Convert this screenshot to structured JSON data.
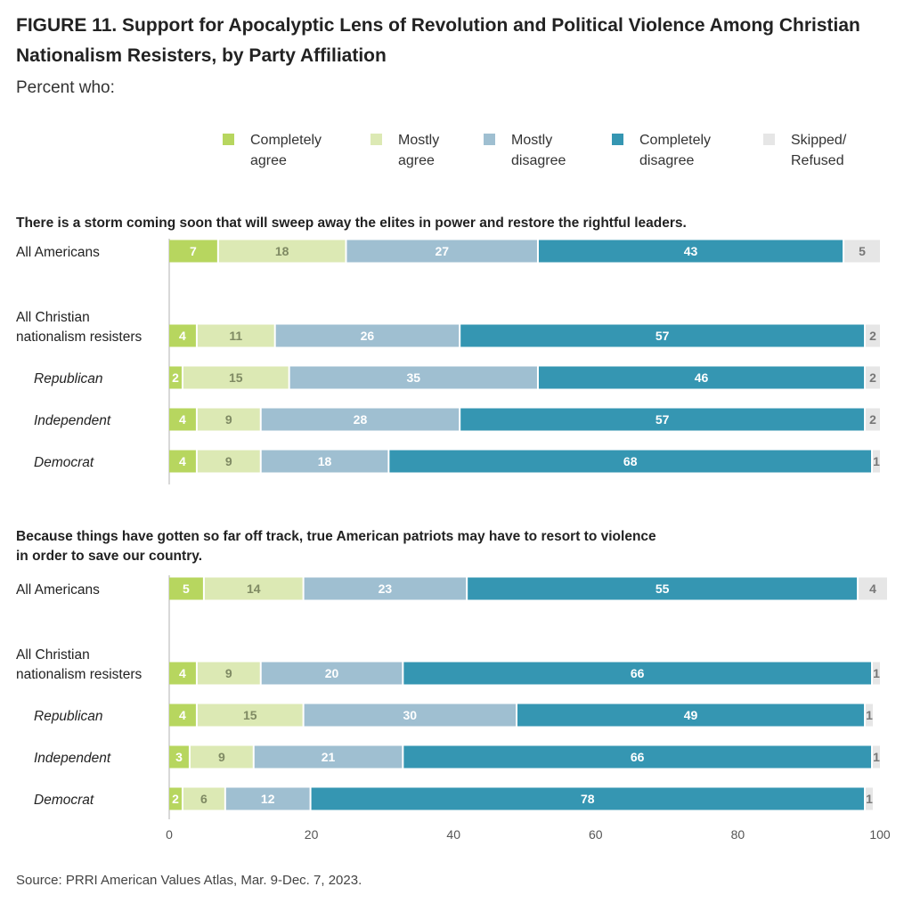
{
  "figure": {
    "title": "FIGURE 11.  Support for Apocalyptic Lens of Revolution and Political Violence Among Christian Nationalism Resisters, by Party Affiliation",
    "subtitle": "Percent who:",
    "source": "Source: PRRI American Values Atlas, Mar. 9-Dec. 7, 2023."
  },
  "chart_data": {
    "type": "bar",
    "orientation": "horizontal",
    "stacked": true,
    "xlim": [
      0,
      100
    ],
    "x_ticks": [
      "0",
      "20",
      "40",
      "60",
      "80",
      "100"
    ],
    "grid": false,
    "legend_position": "top",
    "series": [
      {
        "name": "Completely agree",
        "legend_label": "Completely\nagree",
        "color": "#b7d65f"
      },
      {
        "name": "Mostly agree",
        "legend_label": "Mostly\nagree",
        "color": "#dce9b4"
      },
      {
        "name": "Mostly disagree",
        "legend_label": "Mostly\ndisagree",
        "color": "#9fbfd1"
      },
      {
        "name": "Completely disagree",
        "legend_label": "Completely\ndisagree",
        "color": "#3596b2"
      },
      {
        "name": "Skipped/Refused",
        "legend_label": "Skipped/\nRefused",
        "color": "#e6e6e6"
      }
    ],
    "panels": [
      {
        "question_lines": [
          "There is a storm coming soon that will sweep away the elites in power and restore the rightful leaders."
        ],
        "rows": [
          {
            "label_lines": [
              "All Americans"
            ],
            "italic": false,
            "values": [
              7,
              18,
              27,
              43,
              5
            ]
          },
          {
            "label_lines": [
              "All Christian",
              "nationalism resisters"
            ],
            "italic": false,
            "values": [
              4,
              11,
              26,
              57,
              2
            ]
          },
          {
            "label_lines": [
              "Republican"
            ],
            "italic": true,
            "values": [
              2,
              15,
              35,
              46,
              2
            ]
          },
          {
            "label_lines": [
              "Independent"
            ],
            "italic": true,
            "values": [
              4,
              9,
              28,
              57,
              2
            ]
          },
          {
            "label_lines": [
              "Democrat"
            ],
            "italic": true,
            "values": [
              4,
              9,
              18,
              68,
              1
            ]
          }
        ]
      },
      {
        "question_lines": [
          "Because things have gotten so far off track, true American patriots may have to resort to violence",
          "in order to save our country."
        ],
        "rows": [
          {
            "label_lines": [
              "All Americans"
            ],
            "italic": false,
            "values": [
              5,
              14,
              23,
              55,
              4
            ]
          },
          {
            "label_lines": [
              "All Christian",
              "nationalism resisters"
            ],
            "italic": false,
            "values": [
              4,
              9,
              20,
              66,
              1
            ]
          },
          {
            "label_lines": [
              "Republican"
            ],
            "italic": true,
            "values": [
              4,
              15,
              30,
              49,
              1
            ]
          },
          {
            "label_lines": [
              "Independent"
            ],
            "italic": true,
            "values": [
              3,
              9,
              21,
              66,
              1
            ]
          },
          {
            "label_lines": [
              "Democrat"
            ],
            "italic": true,
            "values": [
              2,
              6,
              12,
              78,
              1
            ]
          }
        ]
      }
    ]
  }
}
